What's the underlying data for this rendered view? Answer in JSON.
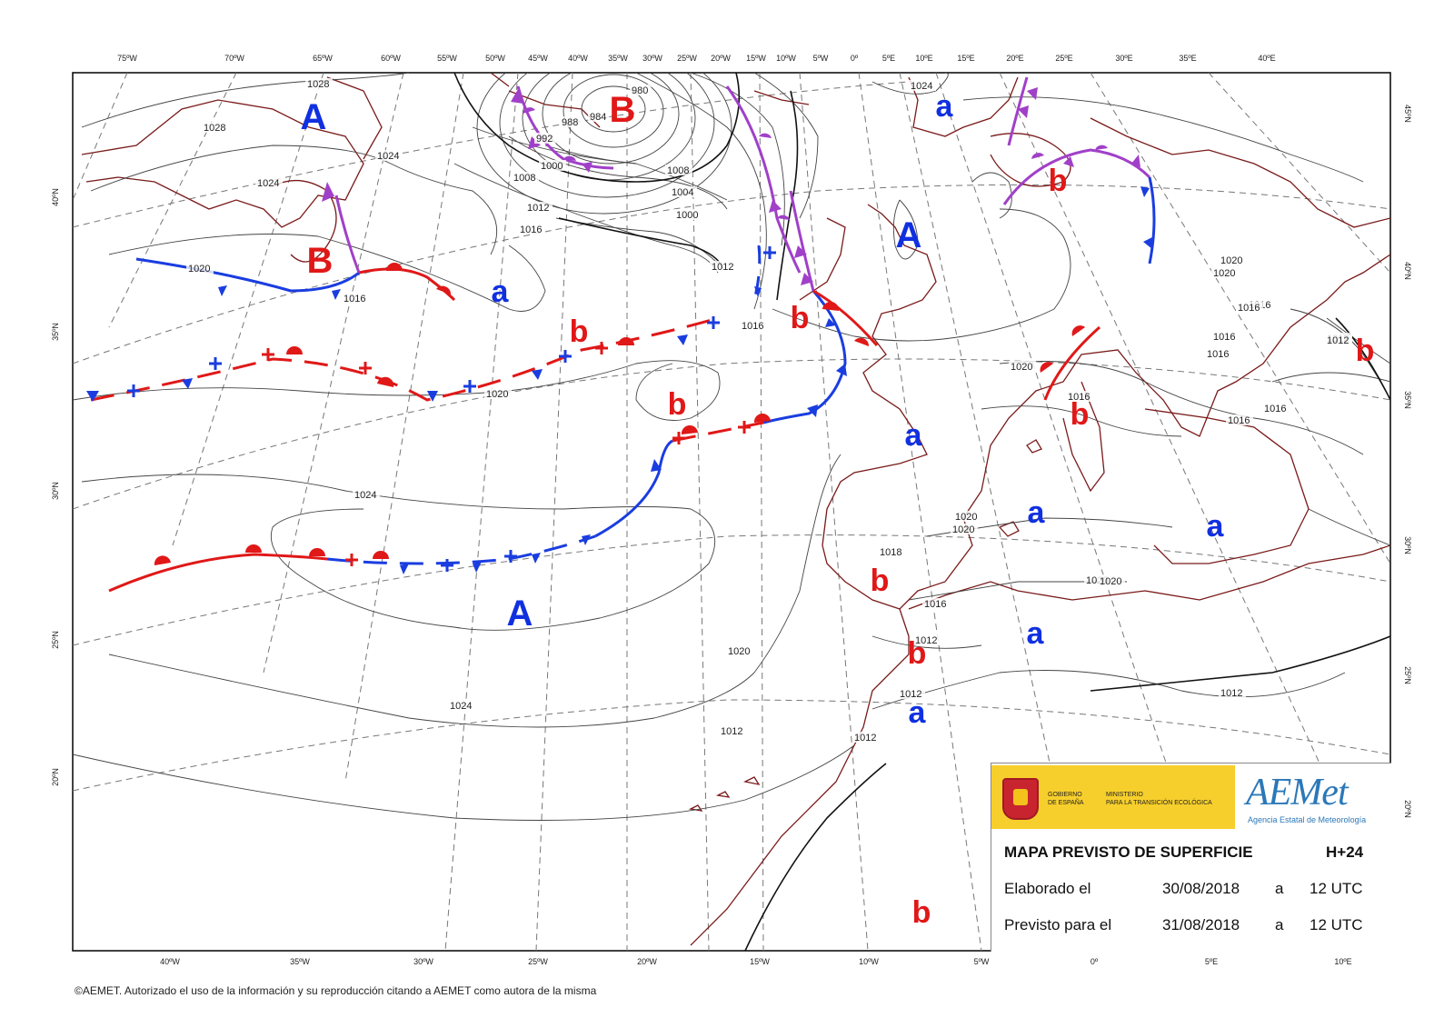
{
  "map": {
    "top_lon_ticks": [
      "75ºW",
      "70ºW",
      "65ºW",
      "60ºW",
      "55ºW",
      "50ºW",
      "45ºW",
      "40ºW",
      "35ºW",
      "30ºW",
      "25ºW",
      "20ºW",
      "15ºW",
      "10ºW",
      "5ºW",
      "0º",
      "5ºE",
      "10ºE",
      "15ºE",
      "20ºE",
      "25ºE",
      "30ºE",
      "35ºE",
      "40ºE"
    ],
    "bottom_lon_ticks": [
      "40ºW",
      "35ºW",
      "30ºW",
      "25ºW",
      "20ºW",
      "15ºW",
      "10ºW",
      "5ºW",
      "0º",
      "5ºE",
      "10ºE"
    ],
    "left_lat_ticks": [
      "40ºN",
      "35ºN",
      "30ºN",
      "25ºN",
      "20ºN"
    ],
    "right_lat_ticks": [
      "45ºN",
      "40ºN",
      "35ºN",
      "30ºN",
      "25ºN",
      "20ºN"
    ],
    "isobar_labels": [
      "1028",
      "1028",
      "1024",
      "1024",
      "1020",
      "1016",
      "1020",
      "1024",
      "1024",
      "1020",
      "1012",
      "1016",
      "1008",
      "1004",
      "1000",
      "1012",
      "1016",
      "1012",
      "1020",
      "1016",
      "1020",
      "1020",
      "1018",
      "1016",
      "1012",
      "1012",
      "1020",
      "1020",
      "1012",
      "1016",
      "1012",
      "1024",
      "1016",
      "1020",
      "1020",
      "1016",
      "1016",
      "1012",
      "1016",
      "1016",
      "1012",
      "980",
      "984",
      "988",
      "992",
      "1000",
      "1008"
    ],
    "pressure_centers": [
      {
        "label": "A",
        "kind": "high-major"
      },
      {
        "label": "B",
        "kind": "low-major"
      },
      {
        "label": "B",
        "kind": "low-major"
      },
      {
        "label": "a",
        "kind": "high-minor"
      },
      {
        "label": "b",
        "kind": "low-minor"
      },
      {
        "label": "b",
        "kind": "low-minor"
      },
      {
        "label": "b",
        "kind": "low-minor"
      },
      {
        "label": "A",
        "kind": "high-major"
      },
      {
        "label": "a",
        "kind": "high-minor"
      },
      {
        "label": "b",
        "kind": "low-minor"
      },
      {
        "label": "b",
        "kind": "low-minor"
      },
      {
        "label": "a",
        "kind": "high-minor"
      },
      {
        "label": "a",
        "kind": "high-minor"
      },
      {
        "label": "b",
        "kind": "low-minor"
      },
      {
        "label": "a",
        "kind": "high-minor"
      },
      {
        "label": "a",
        "kind": "high-minor"
      },
      {
        "label": "b",
        "kind": "low-minor"
      },
      {
        "label": "a",
        "kind": "high-minor"
      },
      {
        "label": "b",
        "kind": "low-minor"
      },
      {
        "label": "b",
        "kind": "low-minor"
      },
      {
        "label": "A",
        "kind": "high-major"
      },
      {
        "label": "b",
        "kind": "low-minor"
      }
    ],
    "colors": {
      "high": "#1030e0",
      "low": "#e01818",
      "cold_front": "#1a3de0",
      "warm_front": "#e01818",
      "occluded_front": "#a040c8",
      "coast": "#7a1a1a",
      "isobar": "#444444",
      "grid": "#777777"
    }
  },
  "info": {
    "gov_line1": "GOBIERNO",
    "gov_line2": "DE ESPAÑA",
    "ministry_line1": "MINISTERIO",
    "ministry_line2": "PARA LA TRANSICIÓN ECOLÓGICA",
    "logo_text": "AEMet",
    "logo_subtitle": "Agencia Estatal de Meteorología",
    "title": "MAPA PREVISTO DE SUPERFICIE",
    "horizon": "H+24",
    "elaborated_label": "Elaborado el",
    "elaborated_date": "30/08/2018",
    "elaborated_at": "a",
    "elaborated_time": "12 UTC",
    "forecast_label": "Previsto para el",
    "forecast_date": "31/08/2018",
    "forecast_at": "a",
    "forecast_time": "12 UTC"
  },
  "copyright": "©AEMET. Autorizado el uso de la información y su reproducción citando a AEMET como autora de la misma"
}
